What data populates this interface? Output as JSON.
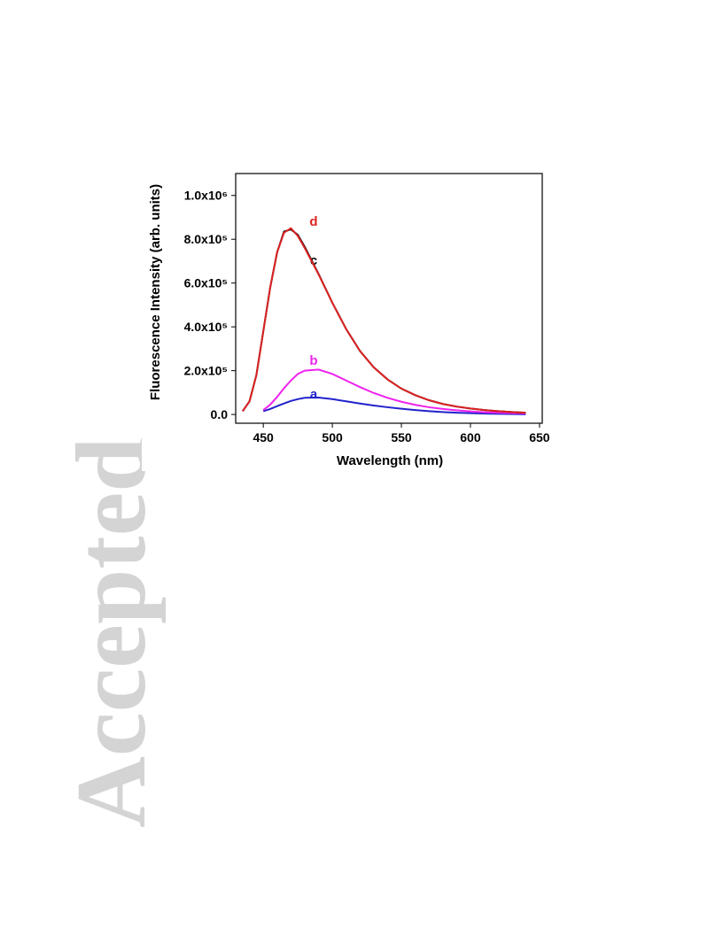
{
  "watermark": "Accepted",
  "chart_data": {
    "type": "line",
    "x_label": "Wavelength (nm)",
    "y_label": "Fluorescence Intensity (arb. units)",
    "xlim": [
      430,
      652
    ],
    "ylim": [
      -40000,
      1100000
    ],
    "xticks": [
      450,
      500,
      550,
      600,
      650
    ],
    "yticks": [
      {
        "value": 0,
        "label": "0.0"
      },
      {
        "value": 200000,
        "label": "2.0x10⁵"
      },
      {
        "value": 400000,
        "label": "4.0x10⁵"
      },
      {
        "value": 600000,
        "label": "6.0x10⁵"
      },
      {
        "value": 800000,
        "label": "8.0x10⁵"
      },
      {
        "value": 1000000,
        "label": "1.0x10⁶"
      }
    ],
    "x": [
      435,
      440,
      445,
      450,
      455,
      460,
      465,
      470,
      475,
      480,
      490,
      500,
      510,
      520,
      530,
      540,
      550,
      560,
      570,
      580,
      590,
      600,
      610,
      620,
      630,
      640
    ],
    "series": [
      {
        "name": "a",
        "color": "#2222cc",
        "values": [
          null,
          null,
          null,
          15000,
          25000,
          38000,
          50000,
          62000,
          70000,
          76000,
          77000,
          70000,
          60000,
          50000,
          41000,
          33000,
          26000,
          20000,
          15000,
          11000,
          8000,
          6000,
          4000,
          3000,
          2000,
          1000
        ]
      },
      {
        "name": "b",
        "color": "#ee22ee",
        "values": [
          null,
          null,
          null,
          20000,
          45000,
          80000,
          120000,
          155000,
          185000,
          200000,
          205000,
          185000,
          155000,
          125000,
          98000,
          76000,
          58000,
          44000,
          33000,
          25000,
          19000,
          14000,
          10000,
          8000,
          6000,
          5000
        ]
      },
      {
        "name": "c",
        "color": "#000000",
        "values": [
          15000,
          60000,
          180000,
          380000,
          580000,
          740000,
          835000,
          845000,
          820000,
          765000,
          642000,
          510000,
          390000,
          290000,
          215000,
          160000,
          118000,
          88000,
          65000,
          48000,
          36000,
          27000,
          20000,
          15000,
          11000,
          8000
        ]
      },
      {
        "name": "d",
        "color": "#dd2222",
        "values": [
          15000,
          60000,
          180000,
          380000,
          580000,
          740000,
          830000,
          850000,
          815000,
          760000,
          640000,
          510000,
          390000,
          290000,
          215000,
          160000,
          118000,
          88000,
          65000,
          48000,
          36000,
          27000,
          20000,
          15000,
          11000,
          8000
        ]
      }
    ]
  }
}
